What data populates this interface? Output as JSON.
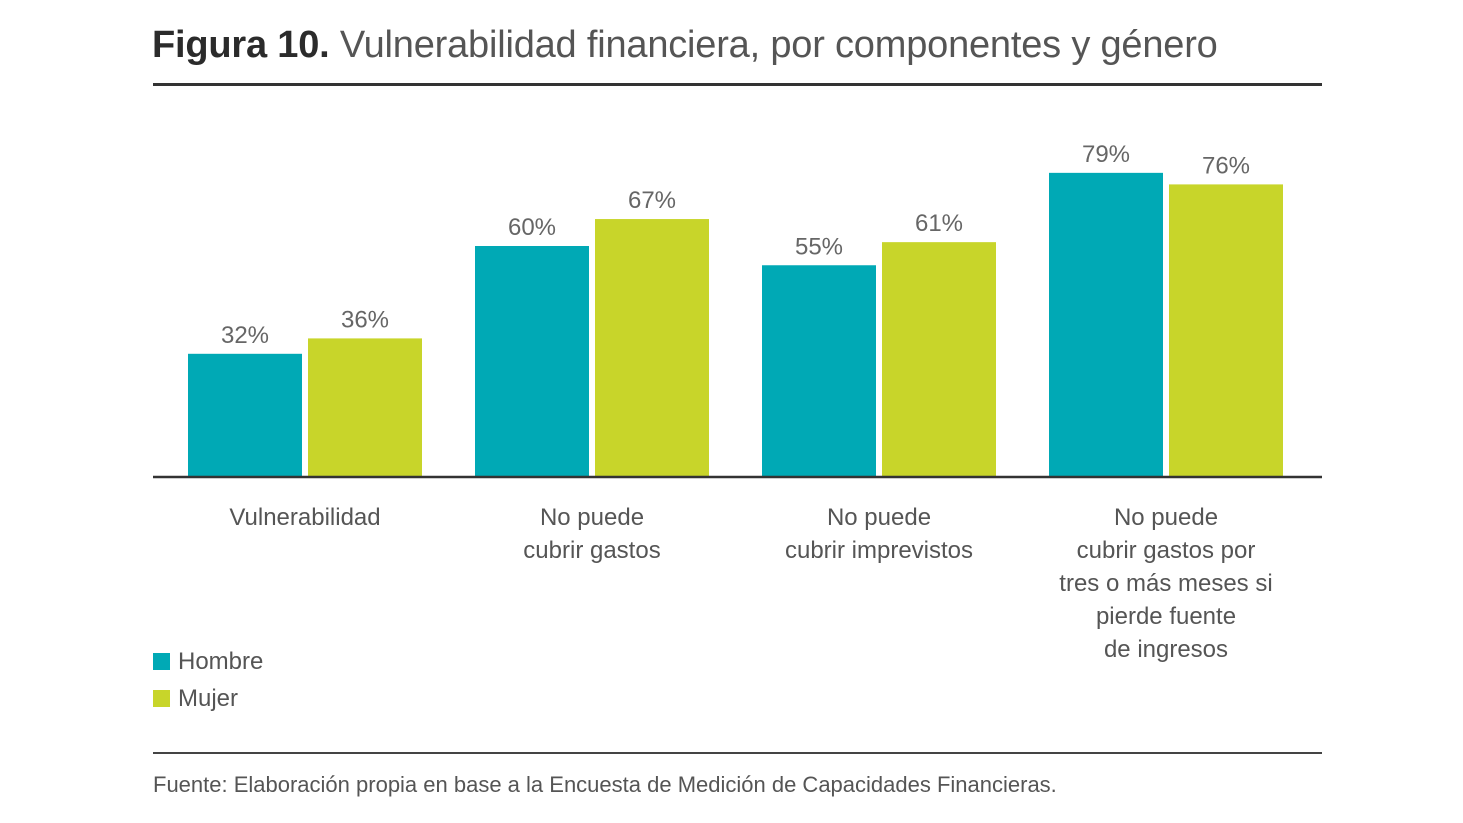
{
  "header": {
    "figure_label": "Figura 10.",
    "title": "Vulnerabilidad financiera, por componentes y género"
  },
  "chart_data": {
    "type": "bar",
    "categories": [
      [
        "Vulnerabilidad"
      ],
      [
        "No puede",
        "cubrir gastos"
      ],
      [
        "No puede",
        "cubrir imprevistos"
      ],
      [
        "No puede",
        "cubrir gastos por",
        "tres o más meses si",
        "pierde fuente",
        "de ingresos"
      ]
    ],
    "series": [
      {
        "name": "Hombre",
        "values": [
          32,
          60,
          55,
          79
        ],
        "labels": [
          "32%",
          "60%",
          "55%",
          "79%"
        ],
        "color": "#00A9B5"
      },
      {
        "name": "Mujer",
        "values": [
          36,
          67,
          61,
          76
        ],
        "labels": [
          "36%",
          "67%",
          "61%",
          "76%"
        ],
        "color": "#C8D52A"
      }
    ],
    "ylim": [
      0,
      100
    ],
    "grid": false,
    "legend_position": "bottom-left",
    "xlabel": "",
    "ylabel": ""
  },
  "legend": [
    {
      "label": "Hombre",
      "color": "#00A9B5"
    },
    {
      "label": "Mujer",
      "color": "#C8D52A"
    }
  ],
  "source": "Fuente: Elaboración propia en base a la Encuesta de Medición de Capacidades Financieras."
}
